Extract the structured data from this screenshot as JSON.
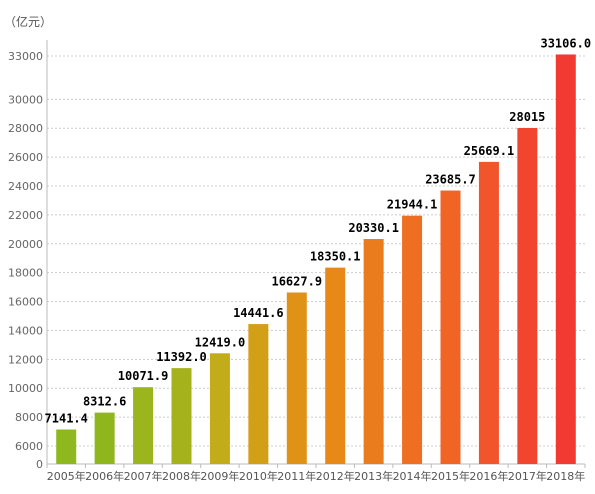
{
  "chart_data": {
    "type": "bar",
    "ylabel": "（亿元）",
    "categories": [
      "2005年",
      "2006年",
      "2007年",
      "2008年",
      "2009年",
      "2010年",
      "2011年",
      "2012年",
      "2013年",
      "2014年",
      "2015年",
      "2016年",
      "2017年",
      "2018年"
    ],
    "values": [
      7141.4,
      8312.6,
      10071.9,
      11392.0,
      12419.0,
      14441.6,
      16627.9,
      18350.1,
      20330.1,
      21944.1,
      23685.7,
      25669.1,
      28015,
      33106.0
    ],
    "value_labels": [
      "7141.4",
      "8312.6",
      "10071.9",
      "11392.0",
      "12419.0",
      "14441.6",
      "16627.9",
      "18350.1",
      "20330.1",
      "21944.1",
      "23685.7",
      "25669.1",
      "28015",
      "33106.0"
    ],
    "yticks": [
      0,
      6000,
      8000,
      10000,
      12000,
      14000,
      16000,
      18000,
      20000,
      22000,
      24000,
      26000,
      28000,
      30000,
      33000
    ],
    "ytick_labels": [
      "0",
      "6000",
      "8000",
      "10000",
      "12000",
      "14000",
      "16000",
      "18000",
      "20000",
      "22000",
      "24000",
      "26000",
      "28000",
      "30000",
      "33000"
    ],
    "grid": true,
    "bar_colors": [
      "#8db81e",
      "#8fb71d",
      "#9bb51c",
      "#a6b21b",
      "#c2ac19",
      "#d39f17",
      "#e09216",
      "#e88917",
      "#ea7c1d",
      "#ee6e22",
      "#f06426",
      "#f2542b",
      "#f2452f",
      "#f23a33"
    ],
    "axis_color": "#bbbbbb",
    "grid_color": "#cccccc"
  }
}
